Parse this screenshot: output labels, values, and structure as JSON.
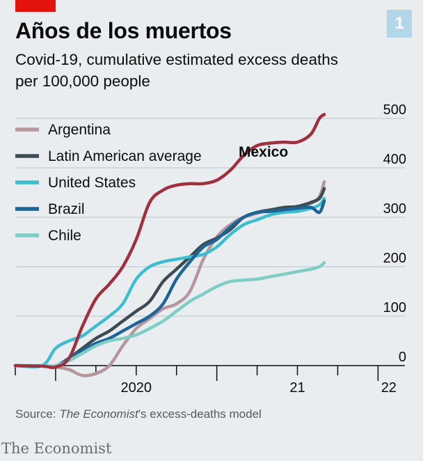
{
  "header": {
    "title": "Años de los muertos",
    "badge": "1",
    "subtitle": "Covid-19, cumulative estimated excess deaths per 100,000 people"
  },
  "footer": {
    "source_prefix": "Source: ",
    "source_italic": "The Economist",
    "source_suffix": "'s excess-deaths model",
    "brand": "The Economist"
  },
  "colors": {
    "brand_red": "#e3120b",
    "grid": "#b9c3cb",
    "axis": "#0c0c0c"
  },
  "chart_data": {
    "type": "line",
    "title": "Años de los muertos",
    "subtitle": "Covid-19, cumulative estimated excess deaths per 100,000 people",
    "xlabel": "",
    "ylabel": "",
    "x_ticks": [
      "2020",
      "21",
      "22"
    ],
    "y_ticks": [
      0,
      100,
      200,
      300,
      400,
      500
    ],
    "ylim": [
      0,
      500
    ],
    "xlim": [
      "2019-10",
      "2022-03"
    ],
    "grid": true,
    "legend_position": "top-left",
    "annotations": [
      {
        "text": "Mexico",
        "series": "Mexico"
      }
    ],
    "series": [
      {
        "name": "Argentina",
        "color": "#b5969f",
        "points": [
          [
            "2019-10",
            0
          ],
          [
            "2019-12",
            -1
          ],
          [
            "2020-01",
            -3
          ],
          [
            "2020-02",
            -8
          ],
          [
            "2020-03",
            -20
          ],
          [
            "2020-04",
            -16
          ],
          [
            "2020-05",
            0
          ],
          [
            "2020-06",
            40
          ],
          [
            "2020-07",
            75
          ],
          [
            "2020-08",
            95
          ],
          [
            "2020-09",
            115
          ],
          [
            "2020-10",
            125
          ],
          [
            "2020-11",
            150
          ],
          [
            "2020-12",
            215
          ],
          [
            "2021-01",
            260
          ],
          [
            "2021-02",
            285
          ],
          [
            "2021-03",
            300
          ],
          [
            "2021-04",
            308
          ],
          [
            "2021-05",
            315
          ],
          [
            "2021-06",
            318
          ],
          [
            "2021-07",
            320
          ],
          [
            "2021-08",
            328
          ],
          [
            "2021-08-20",
            342
          ],
          [
            "2021-09",
            372
          ]
        ]
      },
      {
        "name": "Latin American average",
        "color": "#3f4b52",
        "points": [
          [
            "2019-10",
            0
          ],
          [
            "2019-12",
            -1
          ],
          [
            "2020-01",
            -1
          ],
          [
            "2020-02",
            15
          ],
          [
            "2020-03",
            35
          ],
          [
            "2020-04",
            55
          ],
          [
            "2020-05",
            70
          ],
          [
            "2020-06",
            90
          ],
          [
            "2020-07",
            110
          ],
          [
            "2020-08",
            130
          ],
          [
            "2020-09",
            170
          ],
          [
            "2020-10",
            195
          ],
          [
            "2020-11",
            220
          ],
          [
            "2020-12",
            245
          ],
          [
            "2021-01",
            258
          ],
          [
            "2021-02",
            275
          ],
          [
            "2021-03",
            300
          ],
          [
            "2021-04",
            310
          ],
          [
            "2021-05",
            315
          ],
          [
            "2021-06",
            320
          ],
          [
            "2021-07",
            322
          ],
          [
            "2021-08",
            330
          ],
          [
            "2021-08-20",
            338
          ],
          [
            "2021-09",
            358
          ]
        ]
      },
      {
        "name": "United States",
        "color": "#3ebdd1",
        "points": [
          [
            "2019-10",
            0
          ],
          [
            "2019-12",
            0
          ],
          [
            "2020-01",
            35
          ],
          [
            "2020-02",
            50
          ],
          [
            "2020-03",
            60
          ],
          [
            "2020-04",
            80
          ],
          [
            "2020-05",
            100
          ],
          [
            "2020-06",
            125
          ],
          [
            "2020-07",
            175
          ],
          [
            "2020-08",
            200
          ],
          [
            "2020-09",
            210
          ],
          [
            "2020-10",
            215
          ],
          [
            "2020-11",
            220
          ],
          [
            "2020-12",
            225
          ],
          [
            "2021-01",
            240
          ],
          [
            "2021-02",
            265
          ],
          [
            "2021-03",
            285
          ],
          [
            "2021-04",
            295
          ],
          [
            "2021-05",
            305
          ],
          [
            "2021-06",
            310
          ],
          [
            "2021-07",
            312
          ],
          [
            "2021-08",
            318
          ],
          [
            "2021-08-20",
            325
          ],
          [
            "2021-09",
            338
          ]
        ]
      },
      {
        "name": "Brazil",
        "color": "#1d6596",
        "points": [
          [
            "2019-10",
            0
          ],
          [
            "2019-12",
            -1
          ],
          [
            "2020-01",
            -1
          ],
          [
            "2020-02",
            15
          ],
          [
            "2020-03",
            30
          ],
          [
            "2020-04",
            45
          ],
          [
            "2020-05",
            55
          ],
          [
            "2020-06",
            70
          ],
          [
            "2020-07",
            85
          ],
          [
            "2020-08",
            100
          ],
          [
            "2020-09",
            125
          ],
          [
            "2020-10",
            175
          ],
          [
            "2020-11",
            210
          ],
          [
            "2020-12",
            240
          ],
          [
            "2021-01",
            255
          ],
          [
            "2021-02",
            280
          ],
          [
            "2021-03",
            300
          ],
          [
            "2021-04",
            310
          ],
          [
            "2021-05",
            312
          ],
          [
            "2021-06",
            315
          ],
          [
            "2021-07",
            318
          ],
          [
            "2021-08",
            320
          ],
          [
            "2021-08-20",
            310
          ],
          [
            "2021-09",
            333
          ]
        ]
      },
      {
        "name": "Chile",
        "color": "#7fcdc4",
        "points": [
          [
            "2019-10",
            0
          ],
          [
            "2019-12",
            0
          ],
          [
            "2020-01",
            0
          ],
          [
            "2020-02",
            10
          ],
          [
            "2020-03",
            25
          ],
          [
            "2020-04",
            40
          ],
          [
            "2020-05",
            50
          ],
          [
            "2020-06",
            55
          ],
          [
            "2020-07",
            62
          ],
          [
            "2020-08",
            75
          ],
          [
            "2020-09",
            90
          ],
          [
            "2020-10",
            110
          ],
          [
            "2020-11",
            130
          ],
          [
            "2020-12",
            145
          ],
          [
            "2021-01",
            160
          ],
          [
            "2021-02",
            170
          ],
          [
            "2021-03",
            173
          ],
          [
            "2021-04",
            175
          ],
          [
            "2021-05",
            180
          ],
          [
            "2021-06",
            185
          ],
          [
            "2021-07",
            190
          ],
          [
            "2021-08",
            195
          ],
          [
            "2021-08-20",
            200
          ],
          [
            "2021-09",
            208
          ]
        ]
      },
      {
        "name": "Mexico",
        "color": "#a0303d",
        "points": [
          [
            "2019-10",
            0
          ],
          [
            "2019-12",
            -1
          ],
          [
            "2020-01",
            -3
          ],
          [
            "2020-02",
            15
          ],
          [
            "2020-03",
            80
          ],
          [
            "2020-04",
            135
          ],
          [
            "2020-05",
            165
          ],
          [
            "2020-06",
            200
          ],
          [
            "2020-07",
            255
          ],
          [
            "2020-08",
            330
          ],
          [
            "2020-09",
            355
          ],
          [
            "2020-10",
            365
          ],
          [
            "2020-11",
            368
          ],
          [
            "2020-12",
            368
          ],
          [
            "2021-01",
            375
          ],
          [
            "2021-02",
            395
          ],
          [
            "2021-03",
            425
          ],
          [
            "2021-04",
            445
          ],
          [
            "2021-05",
            450
          ],
          [
            "2021-06",
            452
          ],
          [
            "2021-07",
            452
          ],
          [
            "2021-08",
            468
          ],
          [
            "2021-08-20",
            500
          ],
          [
            "2021-09",
            508
          ]
        ]
      }
    ]
  }
}
